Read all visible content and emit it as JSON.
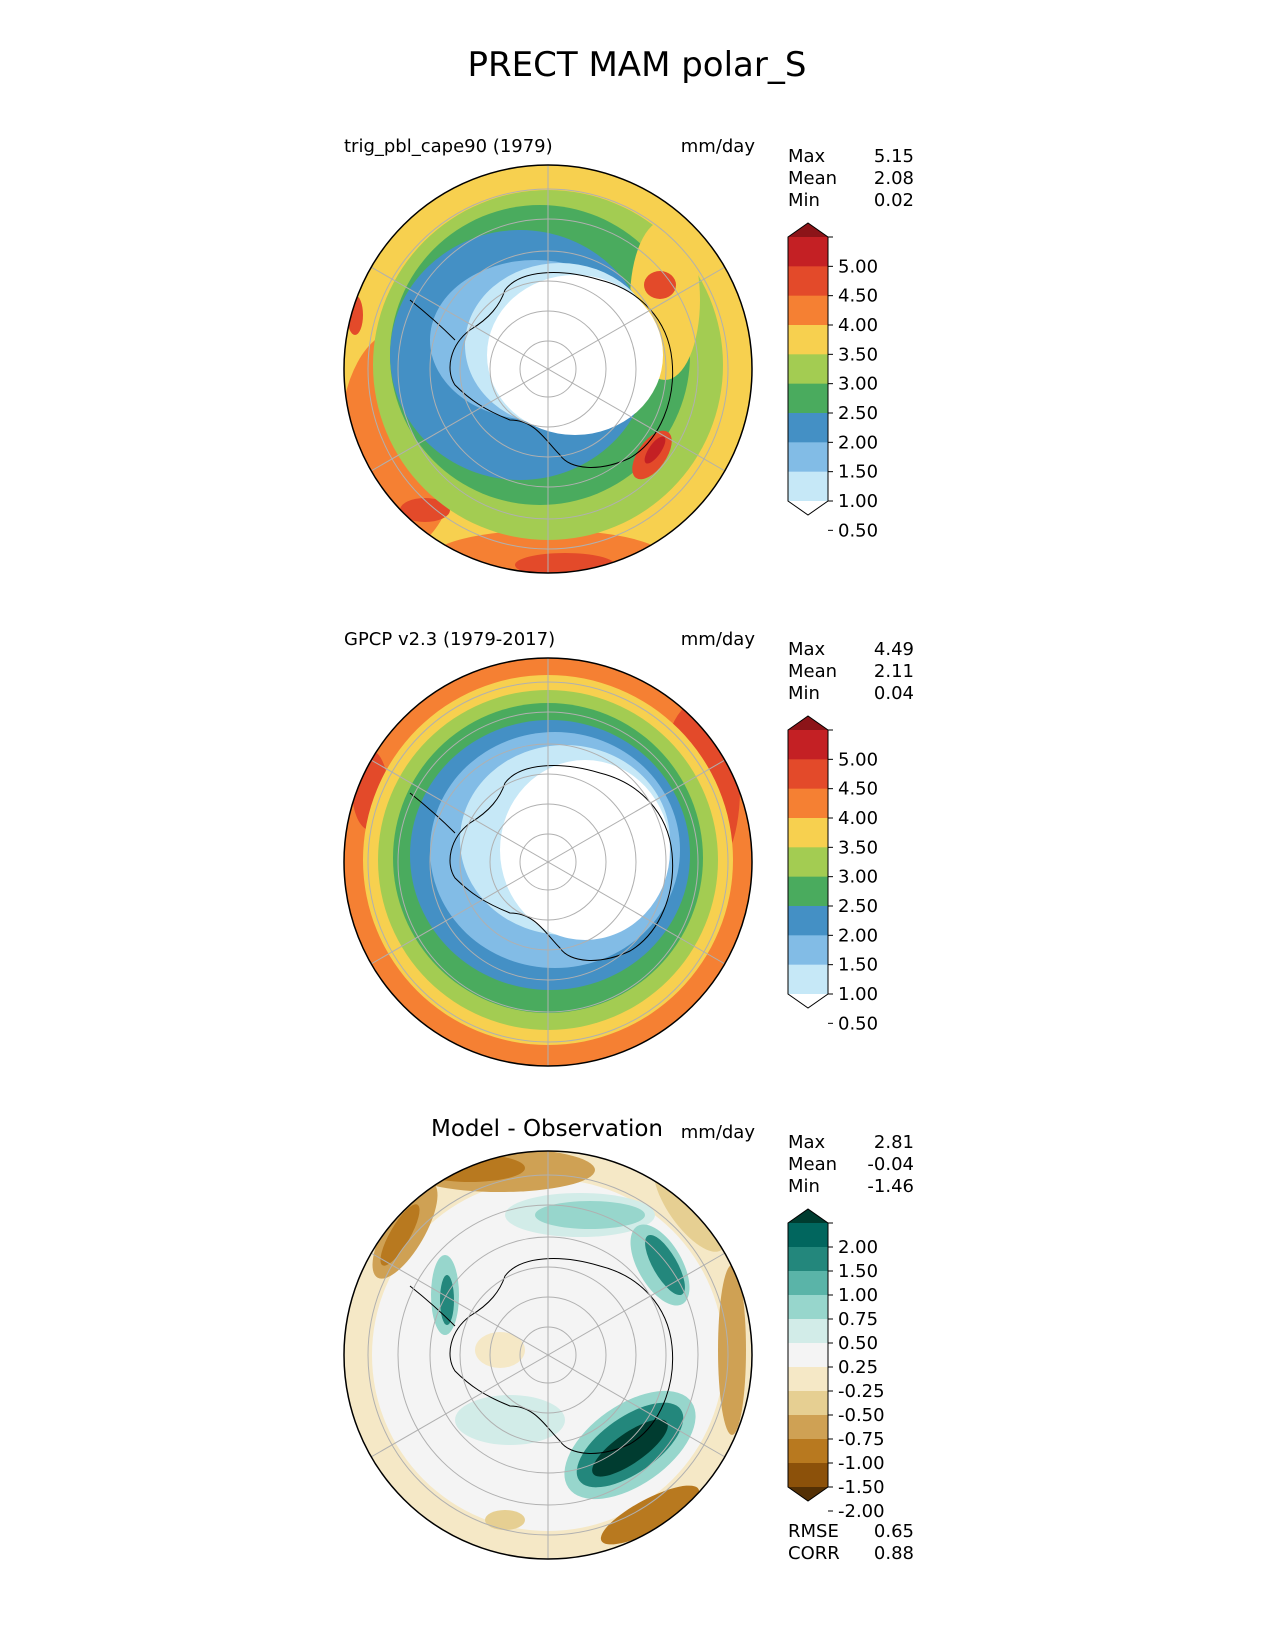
{
  "figure": {
    "title": "PRECT MAM polar_S"
  },
  "colors": {
    "prect_levels": [
      "#ffffff",
      "#c6e8f7",
      "#82bce6",
      "#4490c5",
      "#4aab5e",
      "#a3cc52",
      "#f7d04f",
      "#f58033",
      "#e34a2a",
      "#c42024",
      "#8c1418"
    ],
    "diff_levels": [
      "#543005",
      "#8c510a",
      "#b8791f",
      "#cfa154",
      "#e6cf92",
      "#f5e8c6",
      "#f4f4f4",
      "#d2ece8",
      "#97d6cc",
      "#5ab4a8",
      "#23877c",
      "#01665e",
      "#003c30"
    ],
    "grid": "#b0b0b0",
    "coast": "#000000"
  },
  "panels": [
    {
      "id": "test",
      "title": "trig_pbl_cape90 (1979)",
      "units": "mm/day",
      "stats": [
        {
          "label": "Max",
          "value": "5.15"
        },
        {
          "label": "Mean",
          "value": "2.08"
        },
        {
          "label": "Min",
          "value": "0.02"
        }
      ],
      "colorbar_ticks": [
        "5.00",
        "4.50",
        "4.00",
        "3.50",
        "3.00",
        "2.50",
        "2.00",
        "1.50",
        "1.00",
        "0.50"
      ]
    },
    {
      "id": "reference",
      "title": "GPCP v2.3 (1979-2017)",
      "units": "mm/day",
      "stats": [
        {
          "label": "Max",
          "value": "4.49"
        },
        {
          "label": "Mean",
          "value": "2.11"
        },
        {
          "label": "Min",
          "value": "0.04"
        }
      ],
      "colorbar_ticks": [
        "5.00",
        "4.50",
        "4.00",
        "3.50",
        "3.00",
        "2.50",
        "2.00",
        "1.50",
        "1.00",
        "0.50"
      ]
    },
    {
      "id": "difference",
      "title": "Model - Observation",
      "units": "mm/day",
      "stats": [
        {
          "label": "Max",
          "value": "2.81"
        },
        {
          "label": "Mean",
          "value": "-0.04"
        },
        {
          "label": "Min",
          "value": "-1.46"
        }
      ],
      "colorbar_ticks": [
        "2.00",
        "1.50",
        "1.00",
        "0.75",
        "0.50",
        "0.25",
        "-0.25",
        "-0.50",
        "-0.75",
        "-1.00",
        "-1.50",
        "-2.00"
      ],
      "metrics": [
        {
          "label": "RMSE",
          "value": "0.65"
        },
        {
          "label": "CORR",
          "value": "0.88"
        }
      ]
    }
  ],
  "chart_data": {
    "type": "heatmap",
    "projection": "south-polar-stereographic",
    "title": "PRECT MAM polar_S",
    "subplots": [
      {
        "name": "trig_pbl_cape90 (1979)",
        "units": "mm/day",
        "max": 5.15,
        "mean": 2.08,
        "min": 0.02,
        "levels": [
          0.5,
          1.0,
          1.5,
          2.0,
          2.5,
          3.0,
          3.5,
          4.0,
          4.5,
          5.0
        ],
        "extend": "both"
      },
      {
        "name": "GPCP v2.3 (1979-2017)",
        "units": "mm/day",
        "max": 4.49,
        "mean": 2.11,
        "min": 0.04,
        "levels": [
          0.5,
          1.0,
          1.5,
          2.0,
          2.5,
          3.0,
          3.5,
          4.0,
          4.5,
          5.0
        ],
        "extend": "both"
      },
      {
        "name": "Model - Observation",
        "units": "mm/day",
        "max": 2.81,
        "mean": -0.04,
        "min": -1.46,
        "rmse": 0.65,
        "corr": 0.88,
        "levels": [
          -2.0,
          -1.5,
          -1.0,
          -0.75,
          -0.5,
          -0.25,
          0.25,
          0.5,
          0.75,
          1.0,
          1.5,
          2.0
        ],
        "extend": "both"
      }
    ]
  }
}
